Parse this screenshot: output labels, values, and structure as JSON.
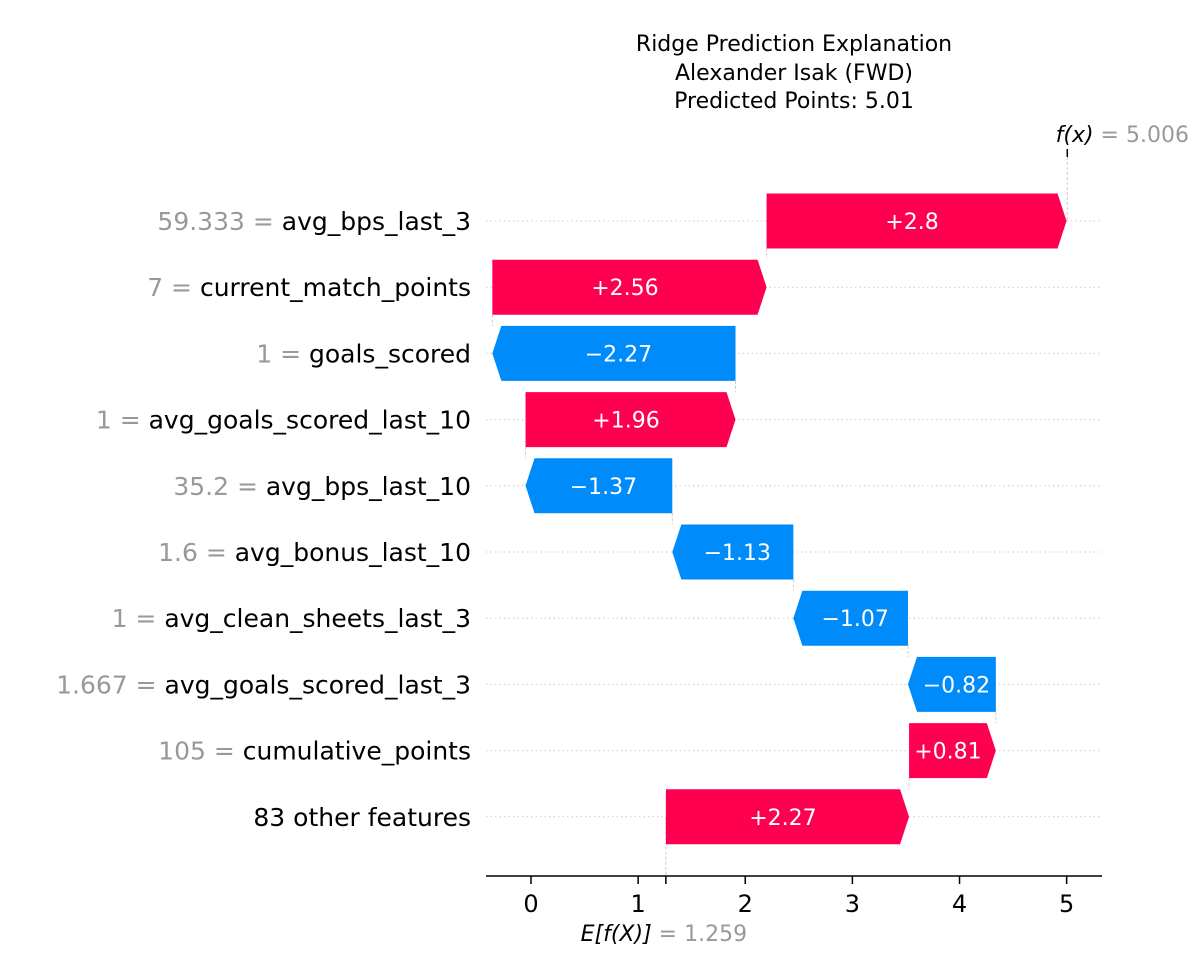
{
  "chart_data": {
    "type": "waterfall",
    "title_lines": [
      "Ridge Prediction Explanation",
      "Alexander Isak (FWD)",
      "Predicted Points: 5.01"
    ],
    "base_value": 1.259,
    "base_value_text": "1.259",
    "output_value": 5.006,
    "output_value_text": "5.006",
    "fx_label": "f(x)",
    "ex_label": "E[f(X)]",
    "xlim": [
      -0.42,
      5.33
    ],
    "xticks": [
      0,
      1,
      2,
      3,
      4,
      5
    ],
    "grid": true,
    "features": [
      {
        "value_text": "59.333",
        "name": "avg_bps_last_3",
        "contribution": 2.8,
        "label": "+2.8"
      },
      {
        "value_text": "7",
        "name": "current_match_points",
        "contribution": 2.56,
        "label": "+2.56"
      },
      {
        "value_text": "1",
        "name": "goals_scored",
        "contribution": -2.27,
        "label": "−2.27"
      },
      {
        "value_text": "1",
        "name": "avg_goals_scored_last_10",
        "contribution": 1.96,
        "label": "+1.96"
      },
      {
        "value_text": "35.2",
        "name": "avg_bps_last_10",
        "contribution": -1.37,
        "label": "−1.37"
      },
      {
        "value_text": "1.6",
        "name": "avg_bonus_last_10",
        "contribution": -1.13,
        "label": "−1.13"
      },
      {
        "value_text": "1",
        "name": "avg_clean_sheets_last_3",
        "contribution": -1.07,
        "label": "−1.07"
      },
      {
        "value_text": "1.667",
        "name": "avg_goals_scored_last_3",
        "contribution": -0.82,
        "label": "−0.82"
      },
      {
        "value_text": "105",
        "name": "cumulative_points",
        "contribution": 0.81,
        "label": "+0.81"
      },
      {
        "value_text": "",
        "name": "83 other features",
        "contribution": 2.27,
        "label": "+2.27"
      }
    ],
    "colors": {
      "positive": "#ff0051",
      "negative": "#008bfb",
      "muted": "#999999",
      "text": "#000000",
      "grid": "#cccccc"
    }
  }
}
